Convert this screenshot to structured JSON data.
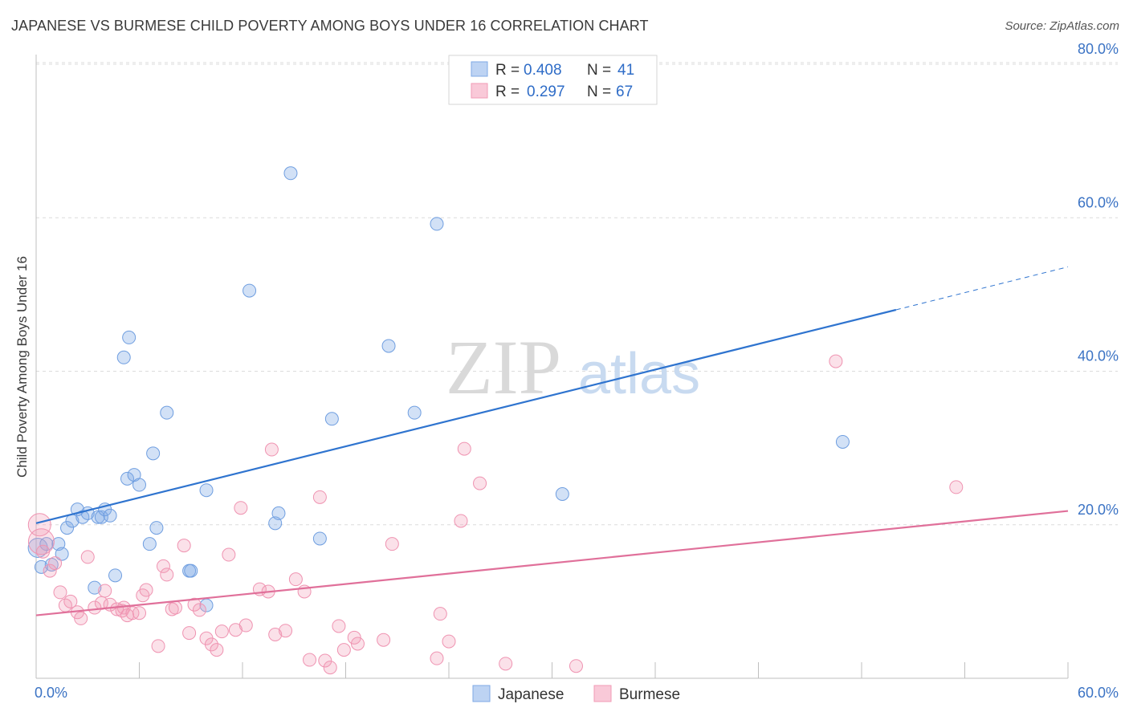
{
  "title": "JAPANESE VS BURMESE CHILD POVERTY AMONG BOYS UNDER 16 CORRELATION CHART",
  "source": "Source: ZipAtlas.com",
  "watermark": {
    "zip": "ZIP",
    "atlas": "atlas"
  },
  "legend": {
    "rows": [
      {
        "r_label": "R =",
        "r_value": "0.408",
        "n_label": "N =",
        "n_value": "41"
      },
      {
        "r_label": "R =",
        "r_value": "0.297",
        "n_label": "N =",
        "n_value": "67"
      }
    ]
  },
  "chart_data": {
    "type": "scatter",
    "title": "JAPANESE VS BURMESE CHILD POVERTY AMONG BOYS UNDER 16 CORRELATION CHART",
    "xlabel": "",
    "ylabel": "Child Poverty Among Boys Under 16",
    "xlim": [
      0,
      60
    ],
    "ylim": [
      0,
      80
    ],
    "x_tick_labels": [
      "0.0%",
      "60.0%"
    ],
    "y_tick_labels": [
      "20.0%",
      "40.0%",
      "60.0%",
      "80.0%"
    ],
    "y_ticks": [
      20,
      40,
      60,
      80
    ],
    "colors": {
      "Japanese": "#7fa9e6",
      "Burmese": "#f19bb6",
      "japanese_line": "#2f74cf",
      "burmese_line": "#e0709a"
    },
    "series": [
      {
        "name": "Japanese",
        "r": 0.408,
        "n": 41,
        "trend": {
          "x0": 0,
          "y0": 20.2,
          "x1": 50,
          "y1": 48.0,
          "dash_x1": 60,
          "dash_y1": 53.6
        },
        "points": [
          [
            0.1,
            17.0
          ],
          [
            0.3,
            14.5
          ],
          [
            0.6,
            17.5
          ],
          [
            0.9,
            14.8
          ],
          [
            1.3,
            17.5
          ],
          [
            1.5,
            16.2
          ],
          [
            1.8,
            19.6
          ],
          [
            2.1,
            20.5
          ],
          [
            2.4,
            22.0
          ],
          [
            2.7,
            21.0
          ],
          [
            3.0,
            21.5
          ],
          [
            3.4,
            11.8
          ],
          [
            3.6,
            21.0
          ],
          [
            3.8,
            21.0
          ],
          [
            4.0,
            22.0
          ],
          [
            4.3,
            21.2
          ],
          [
            4.6,
            13.4
          ],
          [
            5.1,
            41.8
          ],
          [
            5.3,
            26.0
          ],
          [
            5.4,
            44.4
          ],
          [
            5.7,
            26.5
          ],
          [
            6.0,
            25.2
          ],
          [
            6.6,
            17.5
          ],
          [
            6.8,
            29.3
          ],
          [
            7.0,
            19.6
          ],
          [
            7.6,
            34.6
          ],
          [
            8.9,
            14.0
          ],
          [
            9.0,
            14.0
          ],
          [
            9.9,
            9.5
          ],
          [
            9.9,
            24.5
          ],
          [
            12.4,
            50.5
          ],
          [
            13.9,
            20.2
          ],
          [
            14.1,
            21.5
          ],
          [
            14.8,
            65.8
          ],
          [
            16.5,
            18.2
          ],
          [
            17.2,
            33.8
          ],
          [
            20.5,
            43.3
          ],
          [
            22.0,
            34.6
          ],
          [
            23.3,
            59.2
          ],
          [
            30.6,
            24.0
          ],
          [
            46.9,
            30.8
          ]
        ]
      },
      {
        "name": "Burmese",
        "r": 0.297,
        "n": 67,
        "trend": {
          "x0": 0,
          "y0": 8.2,
          "x1": 60,
          "y1": 21.8
        },
        "points": [
          [
            0.2,
            20.0
          ],
          [
            0.4,
            16.5
          ],
          [
            0.8,
            14.0
          ],
          [
            1.1,
            15.0
          ],
          [
            1.4,
            11.2
          ],
          [
            1.7,
            9.5
          ],
          [
            2.0,
            10.0
          ],
          [
            2.4,
            8.6
          ],
          [
            2.6,
            7.8
          ],
          [
            3.0,
            15.8
          ],
          [
            3.4,
            9.2
          ],
          [
            3.8,
            9.8
          ],
          [
            4.0,
            11.4
          ],
          [
            4.3,
            9.6
          ],
          [
            4.7,
            9.0
          ],
          [
            5.0,
            8.8
          ],
          [
            5.1,
            9.2
          ],
          [
            5.3,
            8.2
          ],
          [
            5.6,
            8.5
          ],
          [
            6.0,
            8.5
          ],
          [
            6.2,
            10.8
          ],
          [
            6.4,
            11.5
          ],
          [
            7.1,
            4.2
          ],
          [
            7.4,
            14.6
          ],
          [
            7.6,
            13.5
          ],
          [
            7.9,
            9.0
          ],
          [
            8.1,
            9.2
          ],
          [
            8.6,
            17.3
          ],
          [
            8.9,
            5.9
          ],
          [
            9.2,
            9.6
          ],
          [
            9.5,
            8.9
          ],
          [
            9.9,
            5.2
          ],
          [
            10.2,
            4.4
          ],
          [
            10.5,
            3.7
          ],
          [
            10.8,
            6.1
          ],
          [
            11.2,
            16.1
          ],
          [
            11.6,
            6.3
          ],
          [
            11.9,
            22.2
          ],
          [
            12.2,
            6.9
          ],
          [
            13.0,
            11.6
          ],
          [
            13.5,
            11.3
          ],
          [
            13.9,
            5.7
          ],
          [
            14.5,
            6.2
          ],
          [
            13.7,
            29.8
          ],
          [
            15.1,
            12.9
          ],
          [
            15.6,
            11.3
          ],
          [
            15.9,
            2.4
          ],
          [
            16.5,
            23.6
          ],
          [
            16.8,
            2.3
          ],
          [
            17.1,
            1.4
          ],
          [
            17.6,
            6.8
          ],
          [
            17.9,
            3.7
          ],
          [
            18.5,
            5.3
          ],
          [
            18.7,
            4.5
          ],
          [
            20.2,
            5.0
          ],
          [
            20.7,
            17.5
          ],
          [
            23.3,
            2.6
          ],
          [
            23.5,
            8.4
          ],
          [
            24.0,
            4.8
          ],
          [
            24.7,
            20.5
          ],
          [
            24.9,
            29.9
          ],
          [
            25.8,
            25.4
          ],
          [
            27.3,
            1.9
          ],
          [
            31.4,
            1.6
          ],
          [
            46.5,
            41.3
          ],
          [
            53.5,
            24.9
          ],
          [
            0.3,
            17.8
          ]
        ]
      }
    ]
  },
  "bottom_legend": {
    "items": [
      "Japanese",
      "Burmese"
    ]
  }
}
